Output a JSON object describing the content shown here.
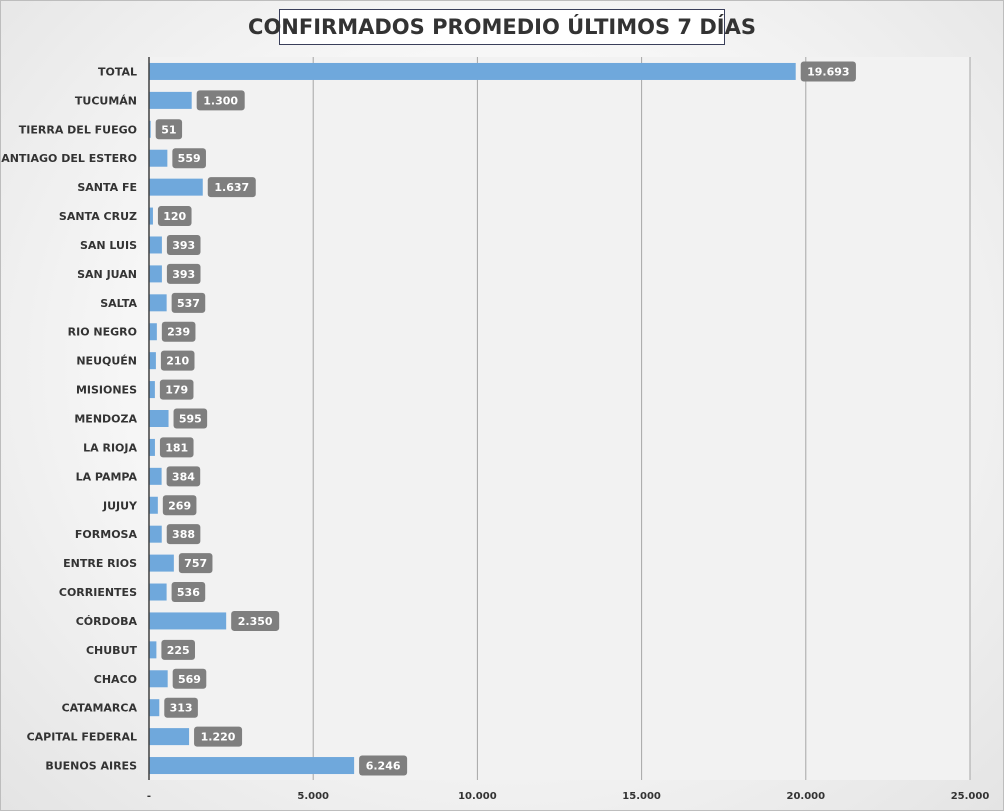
{
  "colors": {
    "bar": "#6fa8dc",
    "label_bg": "#7f7f7f",
    "label_text": "#ffffff",
    "grid": "#a6a6a6",
    "axis": "#404040",
    "plot_bg": "#f2f2f2"
  },
  "chart_data": {
    "type": "bar",
    "orientation": "horizontal",
    "title": "CONFIRMADOS PROMEDIO ÚLTIMOS 7 DÍAS",
    "categories": [
      "TOTAL",
      "TUCUMÁN",
      "TIERRA DEL FUEGO",
      "SANTIAGO DEL ESTERO",
      "SANTA FE",
      "SANTA CRUZ",
      "SAN LUIS",
      "SAN JUAN",
      "SALTA",
      "RIO NEGRO",
      "NEUQUÉN",
      "MISIONES",
      "MENDOZA",
      "LA RIOJA",
      "LA PAMPA",
      "JUJUY",
      "FORMOSA",
      "ENTRE RIOS",
      "CORRIENTES",
      "CÓRDOBA",
      "CHUBUT",
      "CHACO",
      "CATAMARCA",
      "CAPITAL FEDERAL",
      "BUENOS AIRES"
    ],
    "values": [
      19693,
      1300,
      51,
      559,
      1637,
      120,
      393,
      393,
      537,
      239,
      210,
      179,
      595,
      181,
      384,
      269,
      388,
      757,
      536,
      2350,
      225,
      569,
      313,
      1220,
      6246
    ],
    "data_labels": [
      "19.693",
      "1.300",
      "51",
      "559",
      "1.637",
      "120",
      "393",
      "393",
      "537",
      "239",
      "210",
      "179",
      "595",
      "181",
      "384",
      "269",
      "388",
      "757",
      "536",
      "2.350",
      "225",
      "569",
      "313",
      "1.220",
      "6.246"
    ],
    "xlim": [
      0,
      25000
    ],
    "x_ticks": [
      0,
      5000,
      10000,
      15000,
      20000,
      25000
    ],
    "x_tick_labels": [
      "-",
      "5.000",
      "10.000",
      "15.000",
      "20.000",
      "25.000"
    ],
    "xlabel": "",
    "ylabel": "",
    "grid": true,
    "legend": "none"
  }
}
